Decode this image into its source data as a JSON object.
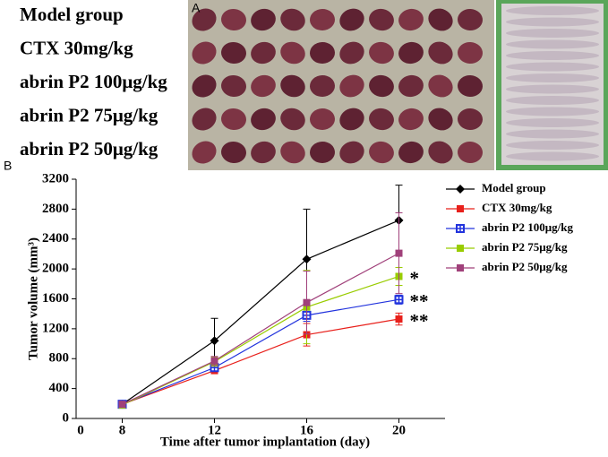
{
  "panel_a": {
    "label": "A",
    "groups": [
      "Model group",
      "CTX 30mg/kg",
      "abrin P2 100μg/kg",
      "abrin P2 75μg/kg",
      "abrin P2 50μg/kg"
    ]
  },
  "chart_data": {
    "type": "line",
    "panel_label": "B",
    "x_label": "Time after tumor implantation (day)",
    "y_label": "Tumor volume (mm³)",
    "x": [
      8,
      12,
      16,
      20
    ],
    "xlim": [
      6,
      22
    ],
    "xticks": [
      8,
      12,
      16,
      20
    ],
    "x_origin_label": "0",
    "ylim": [
      0,
      3200
    ],
    "yticks": [
      0,
      400,
      800,
      1200,
      1600,
      2000,
      2400,
      2800,
      3200
    ],
    "series": [
      {
        "name": "Model group",
        "color": "#000000",
        "marker": "diamond",
        "values": [
          190,
          1040,
          2130,
          2650
        ],
        "errors": [
          20,
          300,
          670,
          470
        ]
      },
      {
        "name": "CTX 30mg/kg",
        "color": "#e8201b",
        "marker": "square",
        "values": [
          190,
          640,
          1120,
          1330
        ],
        "errors": [
          20,
          40,
          150,
          80
        ]
      },
      {
        "name": "abrin P2 100μg/kg",
        "color": "#2233dd",
        "marker": "cross-square",
        "values": [
          190,
          680,
          1380,
          1590
        ],
        "errors": [
          20,
          40,
          80,
          60
        ]
      },
      {
        "name": "abrin P2 75μg/kg",
        "color": "#99cc00",
        "marker": "square",
        "values": [
          180,
          760,
          1490,
          1900
        ],
        "errors": [
          20,
          60,
          490,
          120
        ]
      },
      {
        "name": "abrin P2 50μg/kg",
        "color": "#a0407a",
        "marker": "square",
        "values": [
          190,
          770,
          1550,
          2210
        ],
        "errors": [
          20,
          60,
          420,
          540
        ]
      }
    ],
    "annotations": [
      {
        "text": "*",
        "series": 3
      },
      {
        "text": "**",
        "series": 2
      },
      {
        "text": "**",
        "series": 1
      }
    ]
  }
}
